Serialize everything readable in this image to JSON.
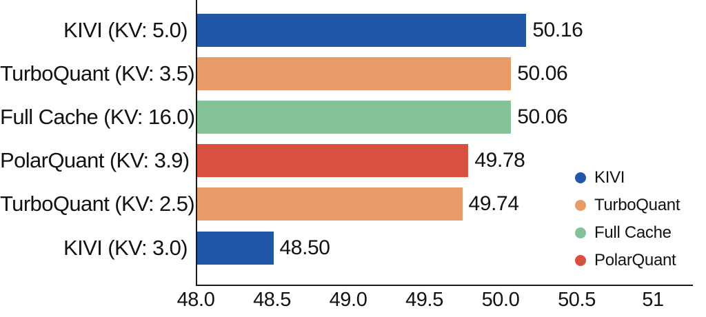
{
  "chart_data": {
    "type": "bar",
    "orientation": "horizontal",
    "title": "",
    "xlabel": "",
    "ylabel": "",
    "grid": false,
    "xlim": [
      48.0,
      51.26
    ],
    "categories": [
      "KIVI (KV: 5.0)",
      "TurboQuant (KV: 3.5)",
      "Full Cache (KV: 16.0)",
      "PolarQuant (KV: 3.9)",
      "TurboQuant (KV: 2.5)",
      "KIVI (KV: 3.0)"
    ],
    "values": [
      50.16,
      50.06,
      50.06,
      49.78,
      49.74,
      48.5
    ],
    "value_labels": [
      "50.16",
      "50.06",
      "50.06",
      "49.78",
      "49.74",
      "48.50"
    ],
    "bar_series": [
      "KIVI",
      "TurboQuant",
      "Full Cache",
      "PolarQuant",
      "TurboQuant",
      "KIVI"
    ],
    "bar_colors": [
      "#2057A7",
      "#E89B66",
      "#84C397",
      "#D8503F",
      "#E89B66",
      "#2057A7"
    ],
    "xticks": [
      "48.0",
      "48.5",
      "49.0",
      "49.5",
      "50.0",
      "50.5",
      "51"
    ],
    "xtick_values": [
      48.0,
      48.5,
      49.0,
      49.5,
      50.0,
      50.5,
      51
    ],
    "legend": {
      "position": "bottom-right",
      "marker": "circle",
      "entries": [
        {
          "label": "KIVI",
          "color": "#2057A7"
        },
        {
          "label": "TurboQuant",
          "color": "#E89B66"
        },
        {
          "label": "Full Cache",
          "color": "#84C397"
        },
        {
          "label": "PolarQuant",
          "color": "#D8503F"
        }
      ]
    },
    "colors": {
      "axis": "#1a1a1a",
      "text": "#121212",
      "background": "#ffffff"
    }
  }
}
